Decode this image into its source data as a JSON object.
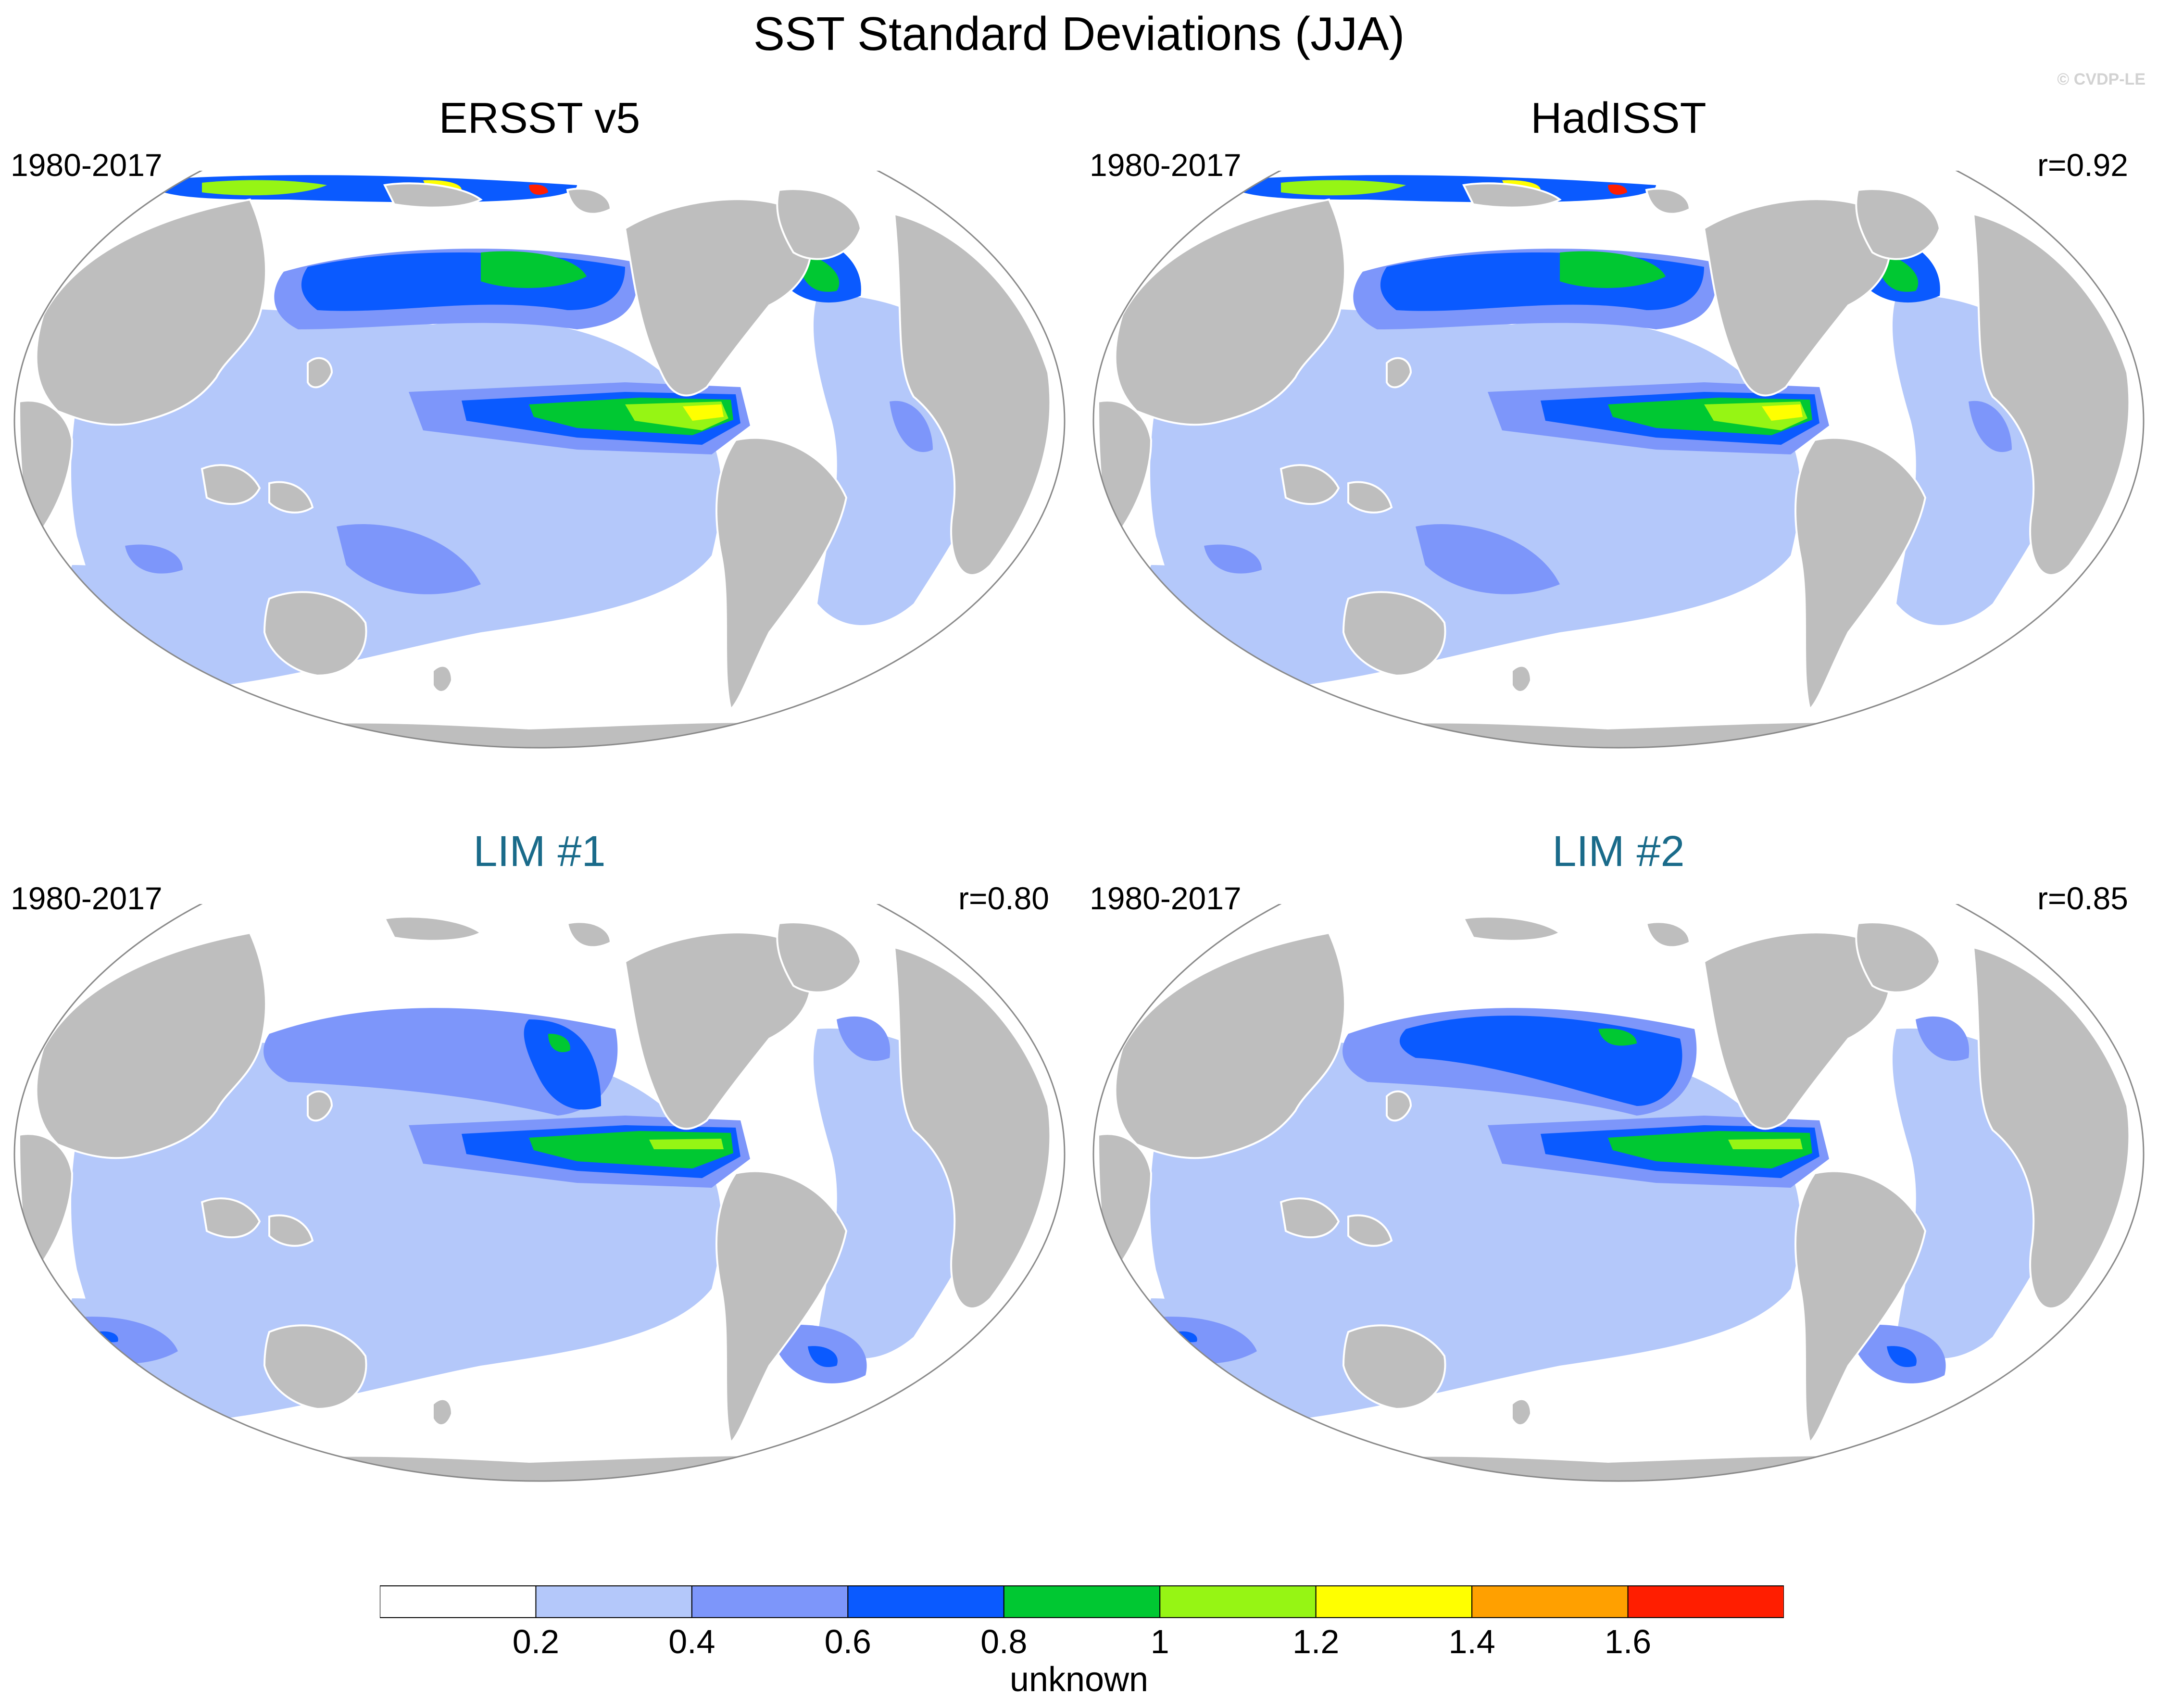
{
  "title": "SST Standard Deviations (JJA)",
  "credit": "© CVDP-LE",
  "colors": {
    "land": "#bebebe",
    "coast": "#ffffff",
    "model_title": "#1a6b8a"
  },
  "panels": [
    {
      "title": "ERSST v5",
      "period": "1980-2017",
      "correlation": "",
      "kind": "obs"
    },
    {
      "title": "HadISST",
      "period": "1980-2017",
      "correlation": "r=0.92",
      "kind": "obs"
    },
    {
      "title": "LIM #1",
      "period": "1980-2017",
      "correlation": "r=0.80",
      "kind": "model"
    },
    {
      "title": "LIM #2",
      "period": "1980-2017",
      "correlation": "r=0.85",
      "kind": "model"
    }
  ],
  "colorbar": {
    "label": "unknown",
    "levels": [
      "0.2",
      "0.4",
      "0.6",
      "0.8",
      "1",
      "1.2",
      "1.4",
      "1.6"
    ],
    "colors": [
      "#ffffff",
      "#b4c8fa",
      "#7d96fa",
      "#0a5aff",
      "#00c832",
      "#96f514",
      "#ffff00",
      "#ffa000",
      "#ff1e00"
    ]
  }
}
